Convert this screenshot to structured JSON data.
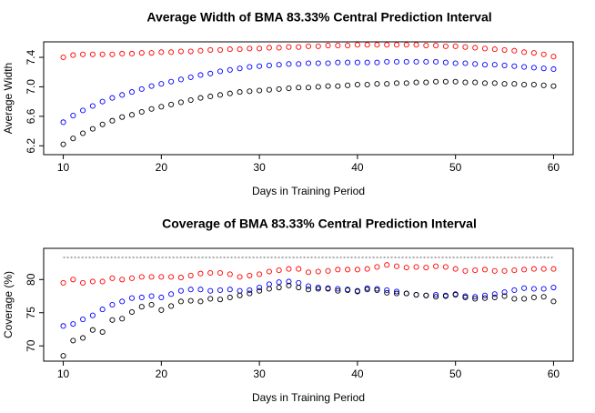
{
  "chart_data": [
    {
      "type": "scatter",
      "title": "Average Width of BMA 83.33% Central Prediction Interval",
      "x_label": "Days in Training Period",
      "y_label": "Average Width",
      "x": [
        10,
        11,
        12,
        13,
        14,
        15,
        16,
        17,
        18,
        19,
        20,
        21,
        22,
        23,
        24,
        25,
        26,
        27,
        28,
        29,
        30,
        31,
        32,
        33,
        34,
        35,
        36,
        37,
        38,
        39,
        40,
        41,
        42,
        43,
        44,
        45,
        46,
        47,
        48,
        49,
        50,
        51,
        52,
        53,
        54,
        55,
        56,
        57,
        58,
        59,
        60
      ],
      "xlim": [
        8,
        62
      ],
      "xticks": [
        10,
        20,
        30,
        40,
        50,
        60
      ],
      "ylim": [
        6.08,
        7.61
      ],
      "yticks": [
        6.2,
        6.6,
        {
          "value": 7,
          "label": "7.0"
        },
        7.4
      ],
      "series": [
        {
          "color": "#ff0000",
          "values": [
            7.4,
            7.43,
            7.44,
            7.44,
            7.44,
            7.44,
            7.45,
            7.45,
            7.46,
            7.46,
            7.47,
            7.47,
            7.48,
            7.48,
            7.49,
            7.5,
            7.5,
            7.51,
            7.51,
            7.52,
            7.52,
            7.53,
            7.53,
            7.54,
            7.54,
            7.55,
            7.55,
            7.56,
            7.56,
            7.56,
            7.57,
            7.57,
            7.57,
            7.57,
            7.57,
            7.57,
            7.57,
            7.56,
            7.56,
            7.55,
            7.55,
            7.54,
            7.53,
            7.52,
            7.51,
            7.5,
            7.49,
            7.47,
            7.46,
            7.44,
            7.41
          ]
        },
        {
          "color": "#0000ff",
          "values": [
            6.52,
            6.61,
            6.68,
            6.74,
            6.8,
            6.85,
            6.89,
            6.93,
            6.97,
            7.01,
            7.04,
            7.07,
            7.1,
            7.13,
            7.16,
            7.18,
            7.21,
            7.23,
            7.25,
            7.27,
            7.28,
            7.29,
            7.3,
            7.31,
            7.31,
            7.32,
            7.32,
            7.32,
            7.33,
            7.33,
            7.33,
            7.33,
            7.33,
            7.34,
            7.34,
            7.34,
            7.34,
            7.34,
            7.34,
            7.33,
            7.32,
            7.32,
            7.31,
            7.3,
            7.3,
            7.29,
            7.28,
            7.27,
            7.26,
            7.25,
            7.24
          ]
        },
        {
          "color": "#000000",
          "values": [
            6.22,
            6.3,
            6.37,
            6.43,
            6.49,
            6.54,
            6.59,
            6.62,
            6.66,
            6.7,
            6.73,
            6.76,
            6.79,
            6.82,
            6.85,
            6.87,
            6.89,
            6.91,
            6.93,
            6.94,
            6.95,
            6.96,
            6.97,
            6.98,
            6.99,
            6.99,
            7.0,
            7.01,
            7.01,
            7.02,
            7.03,
            7.03,
            7.04,
            7.04,
            7.05,
            7.05,
            7.06,
            7.06,
            7.07,
            7.07,
            7.07,
            7.06,
            7.06,
            7.05,
            7.05,
            7.04,
            7.04,
            7.03,
            7.03,
            7.02,
            7.01
          ]
        }
      ]
    },
    {
      "type": "scatter",
      "title": "Coverage of BMA 83.33% Central Prediction Interval",
      "x_label": "Days in Training Period",
      "y_label": "Coverage (%)",
      "x": [
        10,
        11,
        12,
        13,
        14,
        15,
        16,
        17,
        18,
        19,
        20,
        21,
        22,
        23,
        24,
        25,
        26,
        27,
        28,
        29,
        30,
        31,
        32,
        33,
        34,
        35,
        36,
        37,
        38,
        39,
        40,
        41,
        42,
        43,
        44,
        45,
        46,
        47,
        48,
        49,
        50,
        51,
        52,
        53,
        54,
        55,
        56,
        57,
        58,
        59,
        60
      ],
      "xlim": [
        8,
        62
      ],
      "xticks": [
        10,
        20,
        30,
        40,
        50,
        60
      ],
      "ylim": [
        67.7,
        84.7
      ],
      "yticks": [
        70,
        75,
        80
      ],
      "hline": 83.33,
      "series": [
        {
          "color": "#ff0000",
          "values": [
            79.5,
            80,
            79.5,
            79.7,
            79.7,
            80.2,
            80,
            80.2,
            80.4,
            80.4,
            80.4,
            80.4,
            80.3,
            80.6,
            80.9,
            81,
            81,
            80.8,
            80.4,
            80.6,
            80.8,
            81.2,
            81.4,
            81.6,
            81.6,
            81.1,
            81.2,
            81.3,
            81.5,
            81.5,
            81.5,
            81.6,
            81.9,
            82.2,
            82,
            81.8,
            81.9,
            81.8,
            82,
            81.9,
            81.6,
            81.3,
            81.4,
            81.5,
            81.3,
            81.3,
            81.4,
            81.5,
            81.6,
            81.6,
            81.6
          ]
        },
        {
          "color": "#0000ff",
          "values": [
            73,
            73.3,
            74,
            74.6,
            75.5,
            76.2,
            76.7,
            77.2,
            77.3,
            77.5,
            77.3,
            77.8,
            78.3,
            78.5,
            78.5,
            78.3,
            78.4,
            78.5,
            78.3,
            78.4,
            78.8,
            79.3,
            79.6,
            79.7,
            79.5,
            79,
            78.8,
            78.7,
            78.6,
            78.5,
            78.3,
            78.7,
            78.6,
            78.4,
            78.2,
            77.9,
            77.7,
            77.6,
            77.7,
            77.6,
            77.8,
            77.5,
            77.4,
            77.6,
            77.8,
            78.1,
            78.4,
            78.7,
            78.6,
            78.6,
            78.8
          ]
        },
        {
          "color": "#000000",
          "values": [
            68.5,
            70.8,
            71.2,
            72.4,
            72.1,
            73.9,
            74.1,
            75.1,
            75.9,
            76.2,
            75.4,
            76,
            76.7,
            76.8,
            76.7,
            77.1,
            77,
            77.3,
            77.6,
            77.9,
            78.3,
            78.6,
            78.8,
            79.1,
            78.8,
            78.5,
            78.6,
            78.6,
            78.3,
            78.4,
            78.2,
            78.5,
            78.4,
            78,
            77.9,
            77.9,
            77.7,
            77.6,
            77.4,
            77.5,
            77.7,
            77.3,
            77.1,
            77.2,
            77.3,
            77.5,
            77.1,
            77.1,
            77.3,
            77.4,
            76.7
          ]
        }
      ]
    }
  ]
}
